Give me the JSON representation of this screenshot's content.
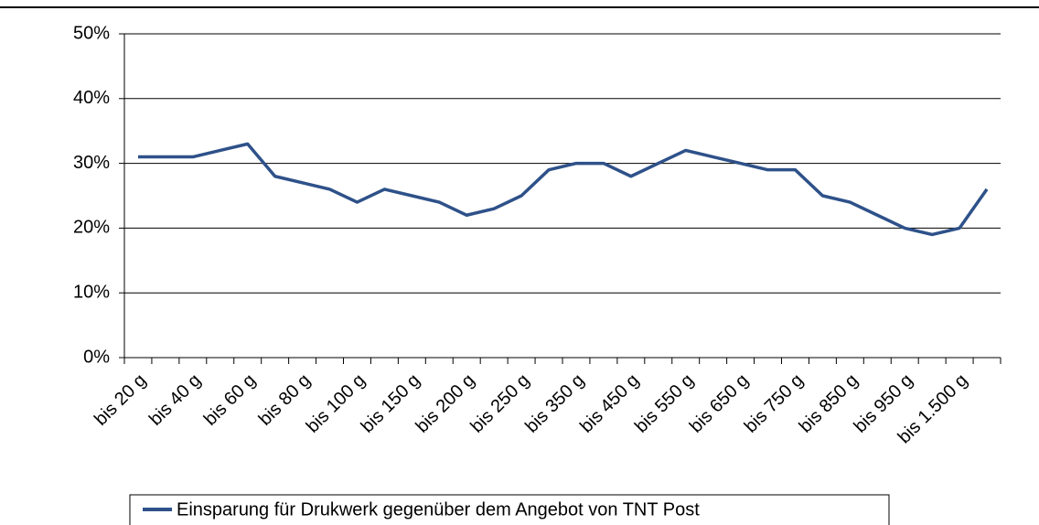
{
  "chart_data": {
    "type": "line",
    "categories": [
      "bis 20 g",
      null,
      "bis 40 g",
      null,
      "bis 60 g",
      null,
      "bis 80 g",
      null,
      "bis 100 g",
      null,
      "bis 150 g",
      null,
      "bis 200 g",
      null,
      "bis 250 g",
      null,
      "bis 350 g",
      null,
      "bis 450 g",
      null,
      "bis 550 g",
      null,
      "bis 650 g",
      null,
      "bis 750 g",
      null,
      "bis 850 g",
      null,
      "bis 950 g",
      null,
      "bis 1.500 g",
      null
    ],
    "series": [
      {
        "name": "Einsparung für Drukwerk gegenüber dem Angebot von TNT Post",
        "color": "#2e5189",
        "values": [
          31,
          31,
          31,
          32,
          33,
          28,
          27,
          26,
          24,
          26,
          25,
          24,
          22,
          23,
          25,
          29,
          30,
          30,
          28,
          30,
          32,
          31,
          30,
          29,
          29,
          25,
          24,
          22,
          20,
          19,
          20,
          26
        ]
      }
    ],
    "ylim": [
      0,
      50
    ],
    "yticks": [
      {
        "value": 0,
        "label": "0%"
      },
      {
        "value": 10,
        "label": "10%"
      },
      {
        "value": 20,
        "label": "20%"
      },
      {
        "value": 30,
        "label": "30%"
      },
      {
        "value": 40,
        "label": "40%"
      },
      {
        "value": 50,
        "label": "50%"
      }
    ],
    "grid": true,
    "legend": "bottom"
  }
}
